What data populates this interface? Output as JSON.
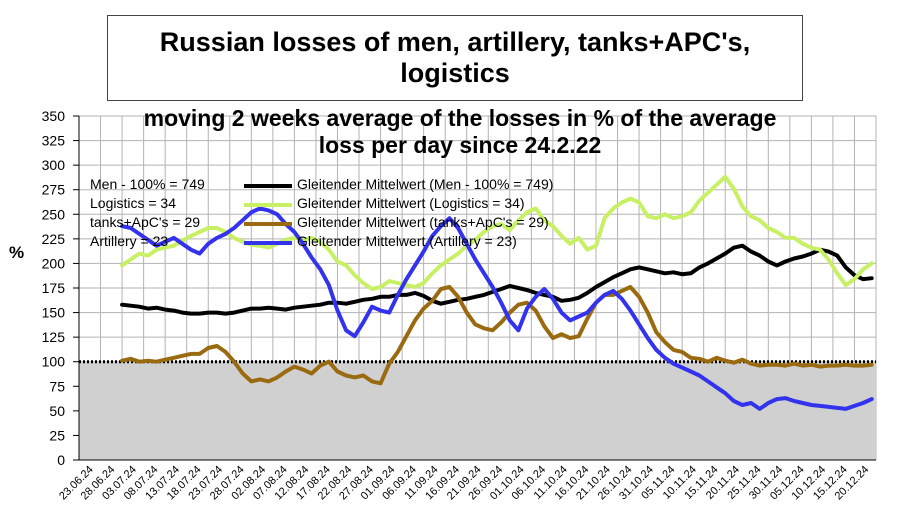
{
  "chart_data": {
    "type": "line",
    "title": [
      "Russian losses of men, artillery, tanks+APC's,",
      "logistics"
    ],
    "subtitle": [
      "moving 2 weeks average of the  losses in %  of the average",
      "loss per day since 24.2.22"
    ],
    "ylabel": "%",
    "ylim": [
      0,
      350
    ],
    "yticks": [
      0,
      25,
      50,
      75,
      100,
      125,
      150,
      175,
      200,
      225,
      250,
      275,
      300,
      325,
      350
    ],
    "xticks": [
      "23.06.24",
      "28.06.24",
      "03.07.24",
      "08.07.24",
      "13.07.24",
      "18.07.24",
      "23.07.24",
      "28.07.24",
      "02.08.24",
      "07.08.24",
      "12.08.24",
      "17.08.24",
      "22.08.24",
      "27.08.24",
      "01.09.24",
      "06.09.24",
      "11.09.24",
      "16.09.24",
      "21.09.24",
      "26.09.24",
      "01.10.24",
      "06.10.24",
      "11.10.24",
      "16.10.24",
      "21.10.24",
      "26.10.24",
      "31.10.24",
      "05.11.24",
      "10.11.24",
      "15.11.24",
      "20.11.24",
      "25.11.24",
      "30.11.24",
      "05.12.24",
      "10.12.24",
      "15.12.24",
      "20.12.24"
    ],
    "grid": true,
    "baseline_band": {
      "from": 0,
      "to": 100,
      "fill": "#d0d0d0"
    },
    "legend_left": [
      "Men - 100% = 749",
      "Logistics = 34",
      "tanks+ApC's = 29",
      "Artillery  = 23"
    ],
    "series": [
      {
        "name": "Gleitender Mittelwert (Men - 100% = 749)",
        "color": "#000000",
        "x": [
          10,
          12,
          14,
          16,
          18,
          20,
          22,
          24,
          26,
          28,
          30,
          32,
          34,
          36,
          38,
          40,
          42,
          44,
          46,
          48,
          50,
          52,
          54,
          56,
          58,
          60,
          62,
          64,
          66,
          68,
          70,
          72,
          74,
          76,
          78,
          80,
          82,
          84,
          86,
          88,
          90,
          92,
          94,
          96,
          98,
          100,
          102,
          104,
          106,
          108,
          110,
          112,
          114,
          116,
          118,
          120,
          122,
          124,
          126,
          128,
          130,
          132,
          134,
          136,
          138,
          140,
          142,
          144,
          146,
          148,
          150,
          152,
          154,
          156,
          158,
          160,
          162,
          164,
          166,
          168,
          170,
          172,
          174,
          176,
          178,
          180,
          182,
          184
        ],
        "y": [
          158,
          157,
          156,
          154,
          155,
          153,
          152,
          150,
          149,
          149,
          150,
          150,
          149,
          150,
          152,
          154,
          154,
          155,
          154,
          153,
          155,
          156,
          157,
          158,
          160,
          160,
          159,
          161,
          163,
          164,
          166,
          166,
          168,
          168,
          170,
          167,
          162,
          159,
          161,
          163,
          164,
          166,
          168,
          171,
          174,
          177,
          175,
          173,
          170,
          168,
          166,
          162,
          163,
          165,
          170,
          176,
          181,
          186,
          190,
          194,
          196,
          194,
          192,
          190,
          191,
          189,
          190,
          196,
          200,
          205,
          210,
          216,
          218,
          212,
          208,
          202,
          198,
          202,
          205,
          207,
          210,
          214,
          212,
          208,
          196,
          188,
          184,
          185
        ]
      },
      {
        "name": "Gleitender Mittelwert (Logistics = 34)",
        "color": "#c8f064",
        "x": [
          10,
          12,
          14,
          16,
          18,
          20,
          22,
          24,
          26,
          28,
          30,
          32,
          34,
          36,
          38,
          40,
          42,
          44,
          46,
          48,
          50,
          52,
          54,
          56,
          58,
          60,
          62,
          64,
          66,
          68,
          70,
          72,
          74,
          76,
          78,
          80,
          82,
          84,
          86,
          88,
          90,
          92,
          94,
          96,
          98,
          100,
          102,
          104,
          106,
          108,
          110,
          112,
          114,
          116,
          118,
          120,
          122,
          124,
          126,
          128,
          130,
          132,
          134,
          136,
          138,
          140,
          142,
          144,
          146,
          148,
          150,
          152,
          154,
          156,
          158,
          160,
          162,
          164,
          166,
          168,
          170,
          172,
          174,
          176,
          178,
          180,
          182,
          184
        ],
        "y": [
          198,
          204,
          210,
          208,
          214,
          216,
          218,
          223,
          228,
          232,
          236,
          236,
          232,
          226,
          222,
          219,
          218,
          216,
          220,
          224,
          226,
          224,
          226,
          222,
          214,
          202,
          198,
          188,
          180,
          174,
          176,
          182,
          180,
          178,
          176,
          180,
          190,
          198,
          204,
          210,
          218,
          224,
          232,
          238,
          240,
          234,
          244,
          252,
          256,
          244,
          238,
          228,
          220,
          226,
          214,
          218,
          246,
          256,
          262,
          266,
          262,
          248,
          246,
          250,
          246,
          248,
          252,
          264,
          272,
          280,
          288,
          276,
          258,
          248,
          244,
          236,
          232,
          226,
          226,
          220,
          216,
          214,
          204,
          190,
          178,
          184,
          194,
          200
        ]
      },
      {
        "name": "Gleitender Mittelwert (tanks+ApC's = 29)",
        "color": "#9a6a10",
        "x": [
          10,
          12,
          14,
          16,
          18,
          20,
          22,
          24,
          26,
          28,
          30,
          32,
          34,
          36,
          38,
          40,
          42,
          44,
          46,
          48,
          50,
          52,
          54,
          56,
          58,
          60,
          62,
          64,
          66,
          68,
          70,
          72,
          74,
          76,
          78,
          80,
          82,
          84,
          86,
          88,
          90,
          92,
          94,
          96,
          98,
          100,
          102,
          104,
          106,
          108,
          110,
          112,
          114,
          116,
          118,
          120,
          122,
          124,
          126,
          128,
          130,
          132,
          134,
          136,
          138,
          140,
          142,
          144,
          146,
          148,
          150,
          152,
          154,
          156,
          158,
          160,
          162,
          164,
          166,
          168,
          170,
          172,
          174,
          176,
          178,
          180,
          182,
          184
        ],
        "y": [
          101,
          103,
          100,
          101,
          100,
          102,
          104,
          106,
          108,
          108,
          114,
          116,
          110,
          100,
          88,
          80,
          82,
          80,
          84,
          90,
          95,
          92,
          88,
          96,
          100,
          90,
          86,
          84,
          86,
          80,
          78,
          98,
          110,
          126,
          142,
          154,
          162,
          174,
          176,
          166,
          150,
          138,
          134,
          132,
          140,
          150,
          158,
          160,
          152,
          136,
          124,
          128,
          124,
          126,
          144,
          160,
          168,
          168,
          172,
          176,
          166,
          150,
          130,
          120,
          112,
          110,
          104,
          103,
          100,
          104,
          101,
          99,
          102,
          98,
          96,
          97,
          97,
          96,
          98,
          96,
          97,
          95,
          96,
          96,
          97,
          96,
          96,
          97
        ]
      },
      {
        "name": "Gleitender Mittelwert (Artillery  = 23)",
        "color": "#3333ee",
        "x": [
          10,
          12,
          14,
          16,
          18,
          20,
          22,
          24,
          26,
          28,
          30,
          32,
          34,
          36,
          38,
          40,
          42,
          44,
          46,
          48,
          50,
          52,
          54,
          56,
          58,
          60,
          62,
          64,
          66,
          68,
          70,
          72,
          74,
          76,
          78,
          80,
          82,
          84,
          86,
          88,
          90,
          92,
          94,
          96,
          98,
          100,
          102,
          104,
          106,
          108,
          110,
          112,
          114,
          116,
          118,
          120,
          122,
          124,
          126,
          128,
          130,
          132,
          134,
          136,
          138,
          140,
          142,
          144,
          146,
          148,
          150,
          152,
          154,
          156,
          158,
          160,
          162,
          164,
          166,
          168,
          170,
          172,
          174,
          176,
          178,
          180,
          182,
          184
        ],
        "y": [
          238,
          236,
          230,
          224,
          218,
          222,
          226,
          220,
          214,
          210,
          220,
          226,
          230,
          236,
          244,
          252,
          256,
          254,
          250,
          240,
          232,
          220,
          206,
          194,
          178,
          152,
          132,
          126,
          140,
          156,
          152,
          150,
          168,
          184,
          198,
          212,
          228,
          238,
          246,
          236,
          220,
          204,
          190,
          176,
          160,
          142,
          132,
          154,
          166,
          174,
          164,
          150,
          142,
          146,
          150,
          160,
          168,
          172,
          164,
          152,
          138,
          124,
          112,
          104,
          98,
          94,
          90,
          86,
          80,
          74,
          68,
          60,
          56,
          58,
          52,
          58,
          62,
          63,
          60,
          58,
          56,
          55,
          54,
          53,
          52,
          55,
          58,
          62
        ]
      }
    ]
  }
}
